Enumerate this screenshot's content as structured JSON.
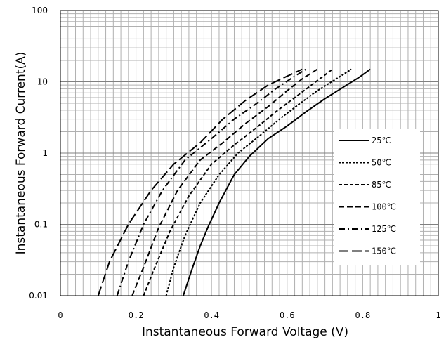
{
  "chart_data": {
    "type": "line",
    "title": "",
    "xlabel": "Instantaneous Forward Voltage (V)",
    "ylabel": "Instantaneous Forward Current(A)",
    "x_scale": "linear",
    "y_scale": "log",
    "xlim": [
      0,
      1
    ],
    "ylim": [
      0.01,
      100
    ],
    "x_ticks": [
      "0",
      "0.2",
      "0.4",
      "0.6",
      "0.8",
      "1"
    ],
    "y_ticks": [
      "0.01",
      "0.1",
      "1",
      "10",
      "100"
    ],
    "grid": true,
    "legend_position": "right",
    "series": [
      {
        "name": "25℃",
        "dash": "solid",
        "x": [
          0.325,
          0.35,
          0.37,
          0.39,
          0.42,
          0.46,
          0.5,
          0.55,
          0.6,
          0.65,
          0.7,
          0.75,
          0.79,
          0.82
        ],
        "y": [
          0.01,
          0.025,
          0.05,
          0.09,
          0.2,
          0.5,
          0.9,
          1.6,
          2.4,
          3.8,
          5.8,
          8.5,
          11.5,
          15
        ]
      },
      {
        "name": "50℃",
        "dash": "dotted",
        "x": [
          0.28,
          0.3,
          0.33,
          0.37,
          0.42,
          0.47,
          0.53,
          0.58,
          0.63,
          0.68,
          0.73,
          0.77
        ],
        "y": [
          0.01,
          0.025,
          0.07,
          0.2,
          0.5,
          1.0,
          1.8,
          3.0,
          4.8,
          7.5,
          11,
          15
        ]
      },
      {
        "name": "85℃",
        "dash": "dashed-short",
        "x": [
          0.22,
          0.25,
          0.29,
          0.34,
          0.4,
          0.46,
          0.52,
          0.57,
          0.62,
          0.67,
          0.72
        ],
        "y": [
          0.01,
          0.025,
          0.08,
          0.25,
          0.7,
          1.3,
          2.3,
          3.8,
          6.0,
          9.5,
          15
        ]
      },
      {
        "name": "100℃",
        "dash": "dashed",
        "x": [
          0.19,
          0.22,
          0.26,
          0.31,
          0.37,
          0.43,
          0.49,
          0.55,
          0.6,
          0.64,
          0.68
        ],
        "y": [
          0.01,
          0.025,
          0.09,
          0.3,
          0.8,
          1.4,
          2.6,
          4.5,
          7.5,
          11,
          15
        ]
      },
      {
        "name": "125℃",
        "dash": "dash-dot",
        "x": [
          0.15,
          0.18,
          0.22,
          0.27,
          0.33,
          0.4,
          0.46,
          0.52,
          0.57,
          0.62,
          0.65
        ],
        "y": [
          0.01,
          0.03,
          0.1,
          0.3,
          0.8,
          1.6,
          3.0,
          5.0,
          8.0,
          12,
          15
        ]
      },
      {
        "name": "150℃",
        "dash": "long-dash",
        "x": [
          0.1,
          0.13,
          0.18,
          0.24,
          0.3,
          0.37,
          0.43,
          0.49,
          0.55,
          0.6,
          0.64
        ],
        "y": [
          0.01,
          0.03,
          0.1,
          0.3,
          0.7,
          1.4,
          3.0,
          5.5,
          9.0,
          12,
          15
        ]
      }
    ]
  }
}
